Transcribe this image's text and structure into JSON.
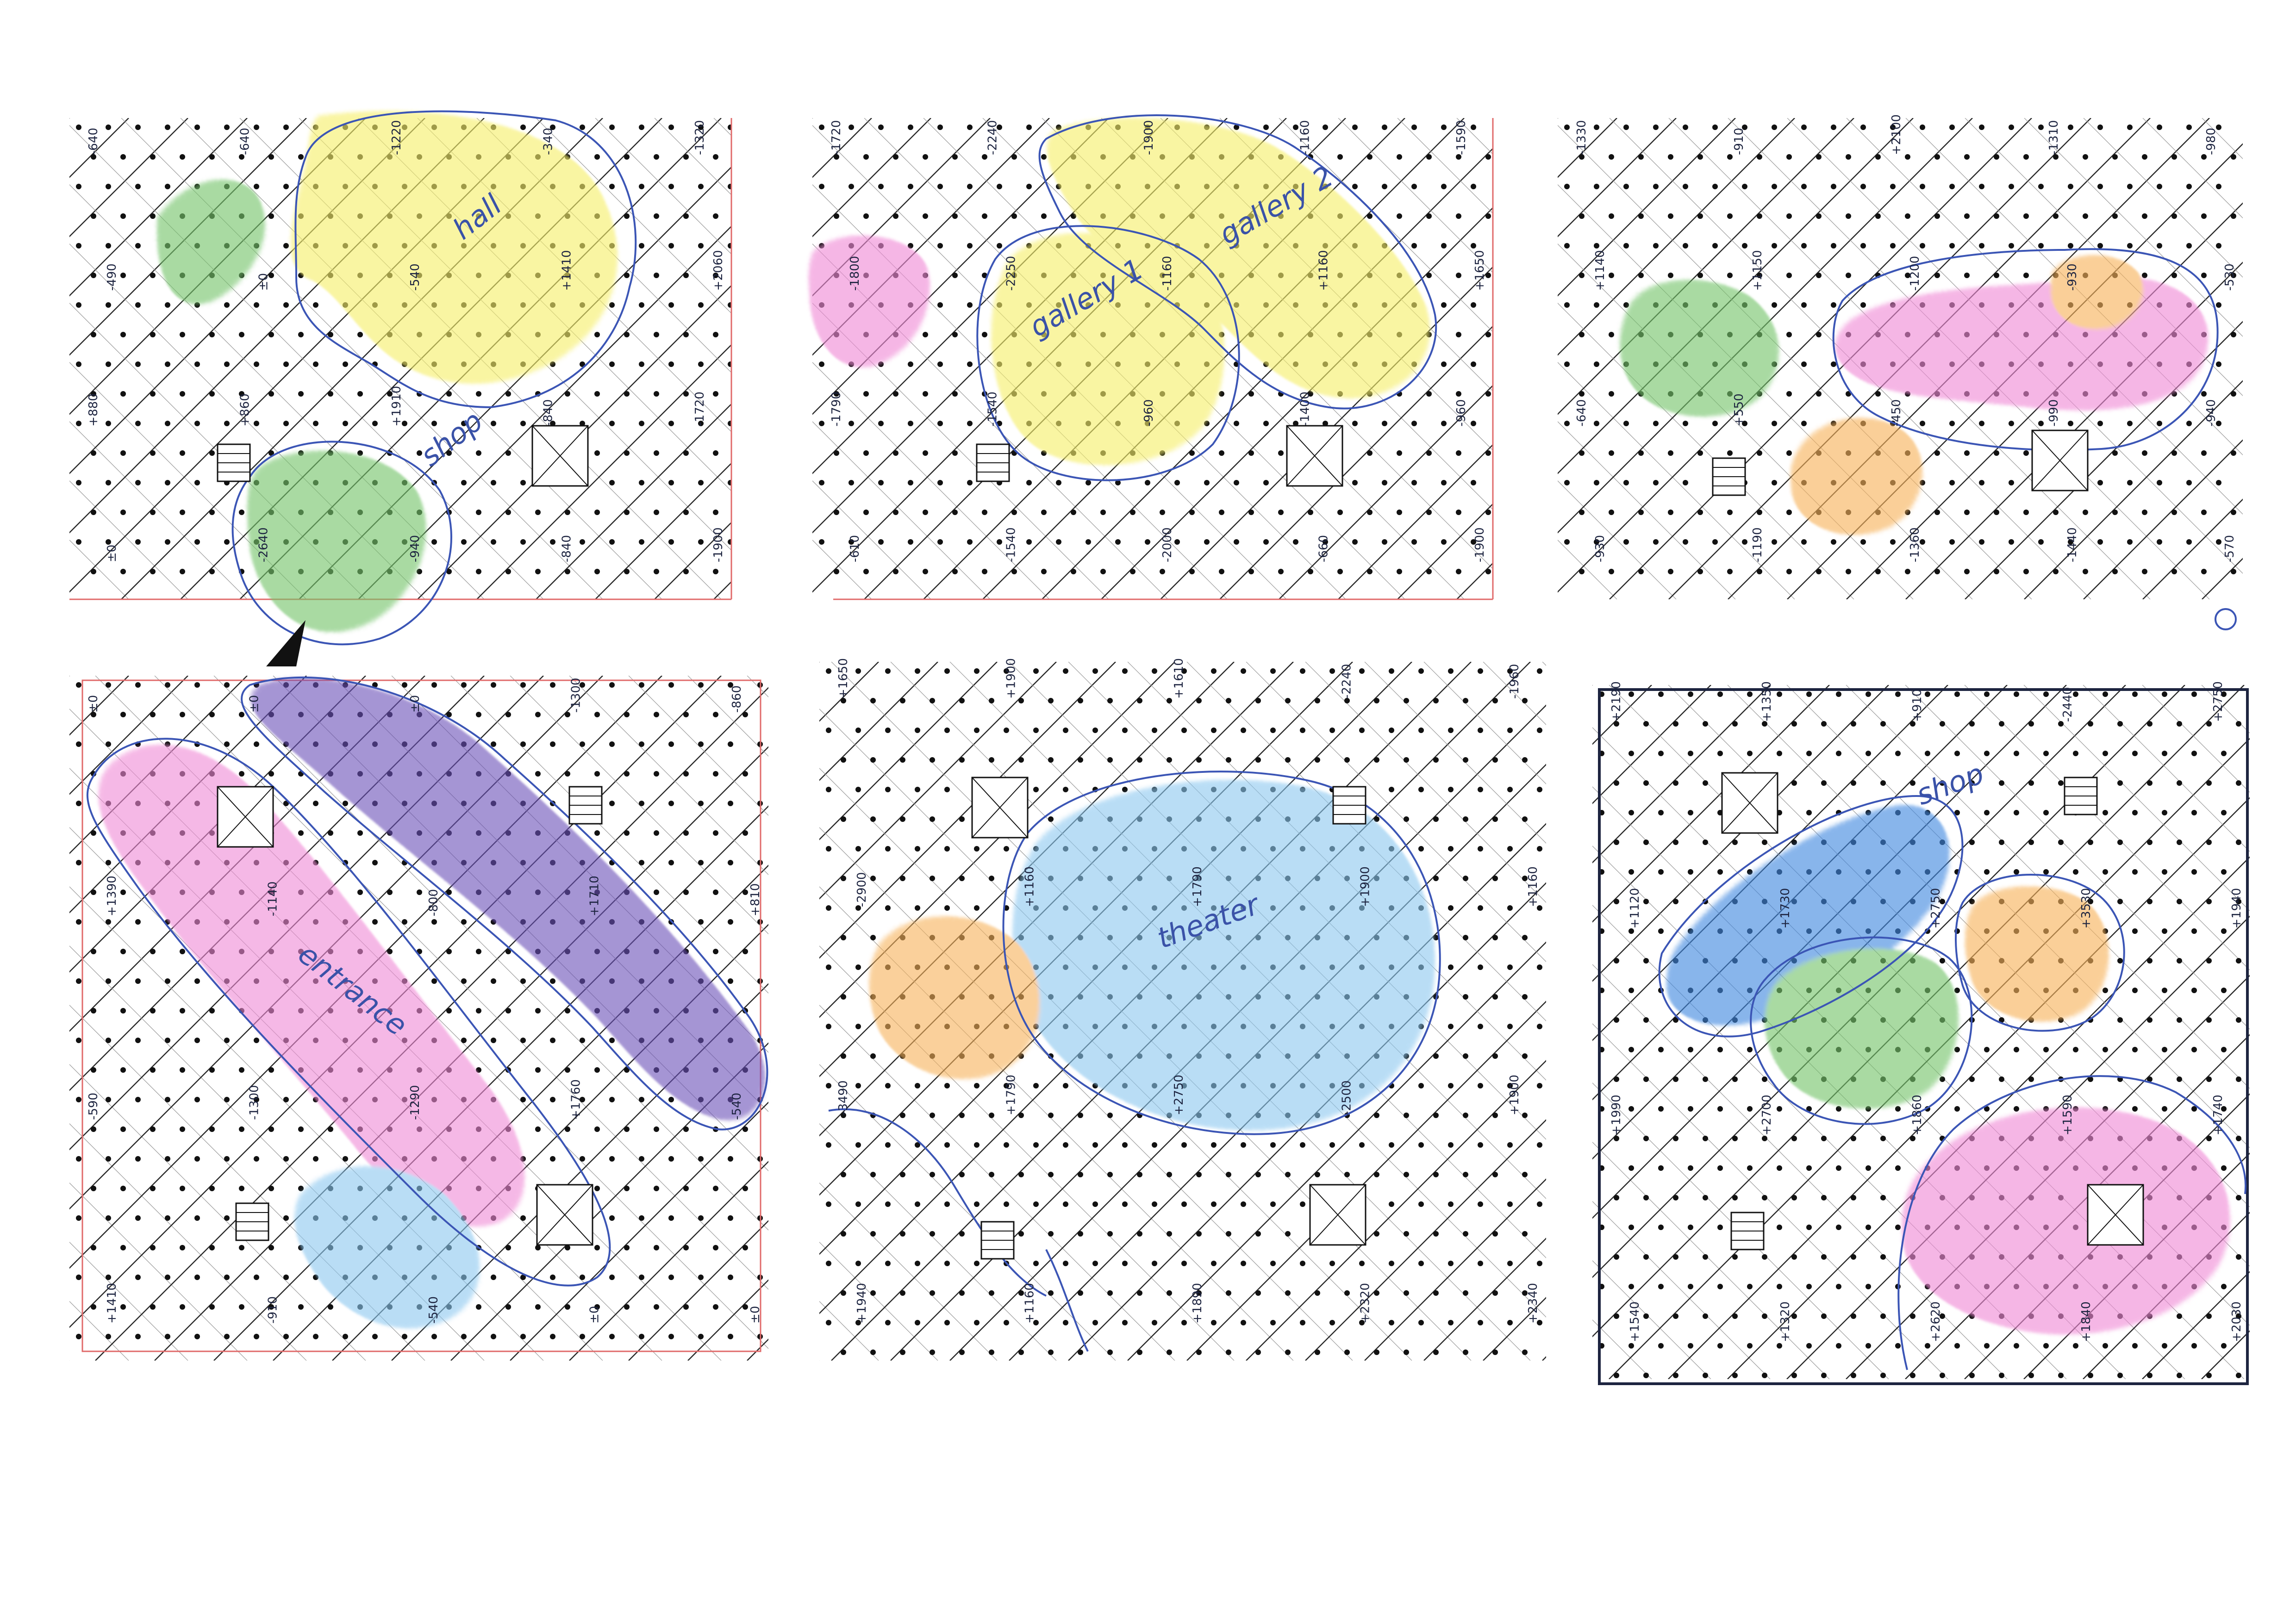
{
  "colors": {
    "paper": "#ffffff",
    "grid": "#222222",
    "frame_red": "#e06a6a",
    "pen_blue": "#3b55b5",
    "ink_dark": "#1d2440",
    "yellow": "#f6ef6a",
    "green": "#74c46a",
    "pink": "#f08ad6",
    "purple": "#6a4fb8",
    "light_blue": "#8cc8f0",
    "mid_blue": "#3f88e0",
    "orange": "#f7b25a"
  },
  "panels": [
    {
      "id": "p1",
      "zones": [
        {
          "label": "hall",
          "color_key": "yellow"
        },
        {
          "label": "",
          "color_key": "green"
        },
        {
          "label": "shop",
          "color_key": "green"
        }
      ],
      "levels": [
        "-640",
        "-640",
        "-1220",
        "-340",
        "-1320",
        "-490",
        "±0",
        "-540",
        "+1410",
        "+2060",
        "+880",
        "+860",
        "+1910",
        "-840",
        "-1720",
        "±0",
        "-2640",
        "-940",
        "-840",
        "-1900"
      ]
    },
    {
      "id": "p2",
      "zones": [
        {
          "label": "gallery 1",
          "color_key": "yellow"
        },
        {
          "label": "gallery 2",
          "color_key": "yellow"
        },
        {
          "label": "",
          "color_key": "pink"
        }
      ],
      "levels": [
        "-1720",
        "-2240",
        "-1900",
        "-1160",
        "-1590",
        "-1800",
        "-2250",
        "-1160",
        "+1160",
        "+1650",
        "-1790",
        "-1540",
        "-960",
        "-1400",
        "-960",
        "-610",
        "-1540",
        "-2000",
        "-660",
        "-1900"
      ]
    },
    {
      "id": "p3",
      "zones": [
        {
          "label": "",
          "color_key": "green"
        },
        {
          "label": "",
          "color_key": "pink"
        },
        {
          "label": "",
          "color_key": "orange"
        }
      ],
      "levels": [
        "-1330",
        "-910",
        "+2100",
        "-1310",
        "-980",
        "+1140",
        "+1150",
        "-1200",
        "-930",
        "-530",
        "-640",
        "+550",
        "-450",
        "-990",
        "-940",
        "-930",
        "-1190",
        "-1360",
        "-1440",
        "-570"
      ]
    },
    {
      "id": "p4",
      "zones": [
        {
          "label": "entrance",
          "color_key": "pink"
        },
        {
          "label": "",
          "color_key": "purple"
        },
        {
          "label": "",
          "color_key": "light_blue"
        }
      ],
      "levels": [
        "±0",
        "±0",
        "±0",
        "-1300",
        "-860",
        "+1390",
        "-1140",
        "-800",
        "+1710",
        "+810",
        "-590",
        "-1300",
        "-1290",
        "+1760",
        "-540",
        "+1410",
        "-910",
        "-540",
        "±0",
        "±0"
      ]
    },
    {
      "id": "p5",
      "zones": [
        {
          "label": "theater",
          "color_key": "light_blue"
        },
        {
          "label": "",
          "color_key": "orange"
        }
      ],
      "levels": [
        "+1650",
        "+1900",
        "+1610",
        "-2240",
        "-1960",
        "-2900",
        "+1160",
        "+1790",
        "+1900",
        "+1160",
        "-3490",
        "+1790",
        "+2750",
        "-2500",
        "+1900",
        "+1940",
        "+1160",
        "+1890",
        "+2320",
        "+2340"
      ]
    },
    {
      "id": "p6",
      "zones": [
        {
          "label": "shop",
          "color_key": "mid_blue"
        },
        {
          "label": "",
          "color_key": "green"
        },
        {
          "label": "",
          "color_key": "orange"
        },
        {
          "label": "",
          "color_key": "pink"
        }
      ],
      "levels": [
        "+2190",
        "+1350",
        "+910",
        "-2440",
        "+2750",
        "+1120",
        "+1730",
        "+2750",
        "+3530",
        "+1940",
        "+1990",
        "+2700",
        "+1860",
        "+1590",
        "+1740",
        "+1540",
        "+1320",
        "+2620",
        "+1840",
        "+2030"
      ]
    }
  ]
}
